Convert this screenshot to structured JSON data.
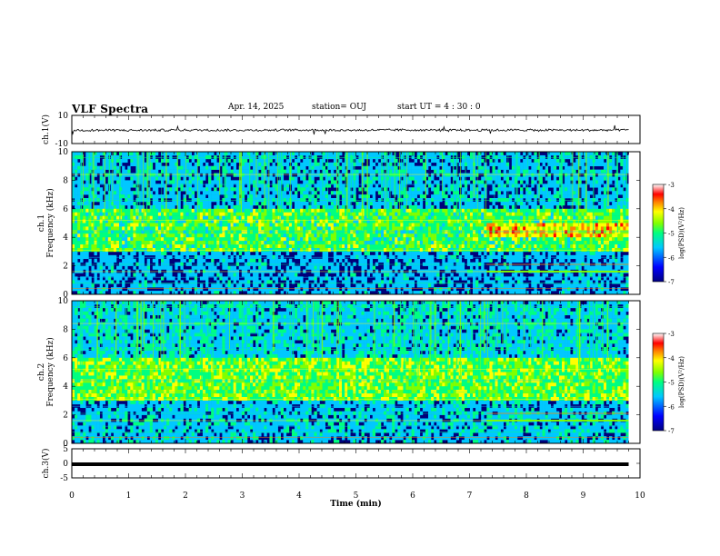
{
  "header": {
    "title": "VLF Spectra",
    "date": "Apr. 14, 2025",
    "station": "station= OUJ",
    "start_ut": "start  UT  =   4 : 30 : 0"
  },
  "colors": {
    "background": "#ffffff",
    "axis": "#000000",
    "colormap": [
      "#000080",
      "#0000ff",
      "#00c8ff",
      "#00ff80",
      "#80ff00",
      "#ffff00",
      "#ff8000",
      "#ff0000",
      "#ffffff"
    ]
  },
  "chart_data": [
    {
      "id": "ch1_waveform",
      "type": "line",
      "ylabel": "ch.1(V)",
      "ylim": [
        -10,
        10
      ],
      "yticks": [
        "10",
        "-10"
      ],
      "xlim": [
        0,
        10
      ],
      "x": [
        0,
        1,
        2,
        3,
        4,
        5,
        6,
        7,
        8,
        9,
        9.8
      ],
      "values": [
        -0.5,
        -0.6,
        -0.4,
        -0.5,
        -0.4,
        -0.5,
        -0.3,
        -0.5,
        -0.4,
        -0.5,
        -0.4
      ]
    },
    {
      "id": "ch1_spectrogram",
      "type": "heatmap",
      "ylabel": "ch.1 Frequency (kHz)",
      "ylim": [
        0,
        10
      ],
      "yticks": [
        "0",
        "2",
        "4",
        "6",
        "8",
        "10"
      ],
      "xlim": [
        0,
        10
      ],
      "data_end_min": 9.8,
      "colorbar": {
        "label": "log(PSD)(V²/Hz)",
        "range": [
          -7,
          -3
        ],
        "ticks": [
          "-3",
          "-4",
          "-5",
          "-6",
          "-7"
        ]
      }
    },
    {
      "id": "ch2_spectrogram",
      "type": "heatmap",
      "ylabel": "ch.2 Frequency (kHz)",
      "ylim": [
        0,
        10
      ],
      "yticks": [
        "0",
        "2",
        "4",
        "6",
        "8",
        "10"
      ],
      "xlim": [
        0,
        10
      ],
      "data_end_min": 9.8,
      "colorbar": {
        "label": "log(PSD)(V²/Hz)",
        "range": [
          -7,
          -3
        ],
        "ticks": [
          "-3",
          "-4",
          "-5",
          "-6",
          "-7"
        ]
      }
    },
    {
      "id": "ch3_waveform",
      "type": "line",
      "ylabel": "ch.3(V)",
      "ylim": [
        -5,
        5
      ],
      "yticks": [
        "5",
        "0",
        "-5"
      ],
      "xlim": [
        0,
        10
      ],
      "x": [
        0,
        9.8
      ],
      "values": [
        -0.3,
        -0.3
      ]
    }
  ],
  "xaxis": {
    "label": "Time  (min)",
    "ticks": [
      "0",
      "1",
      "2",
      "3",
      "4",
      "5",
      "6",
      "7",
      "8",
      "9",
      "10"
    ]
  }
}
